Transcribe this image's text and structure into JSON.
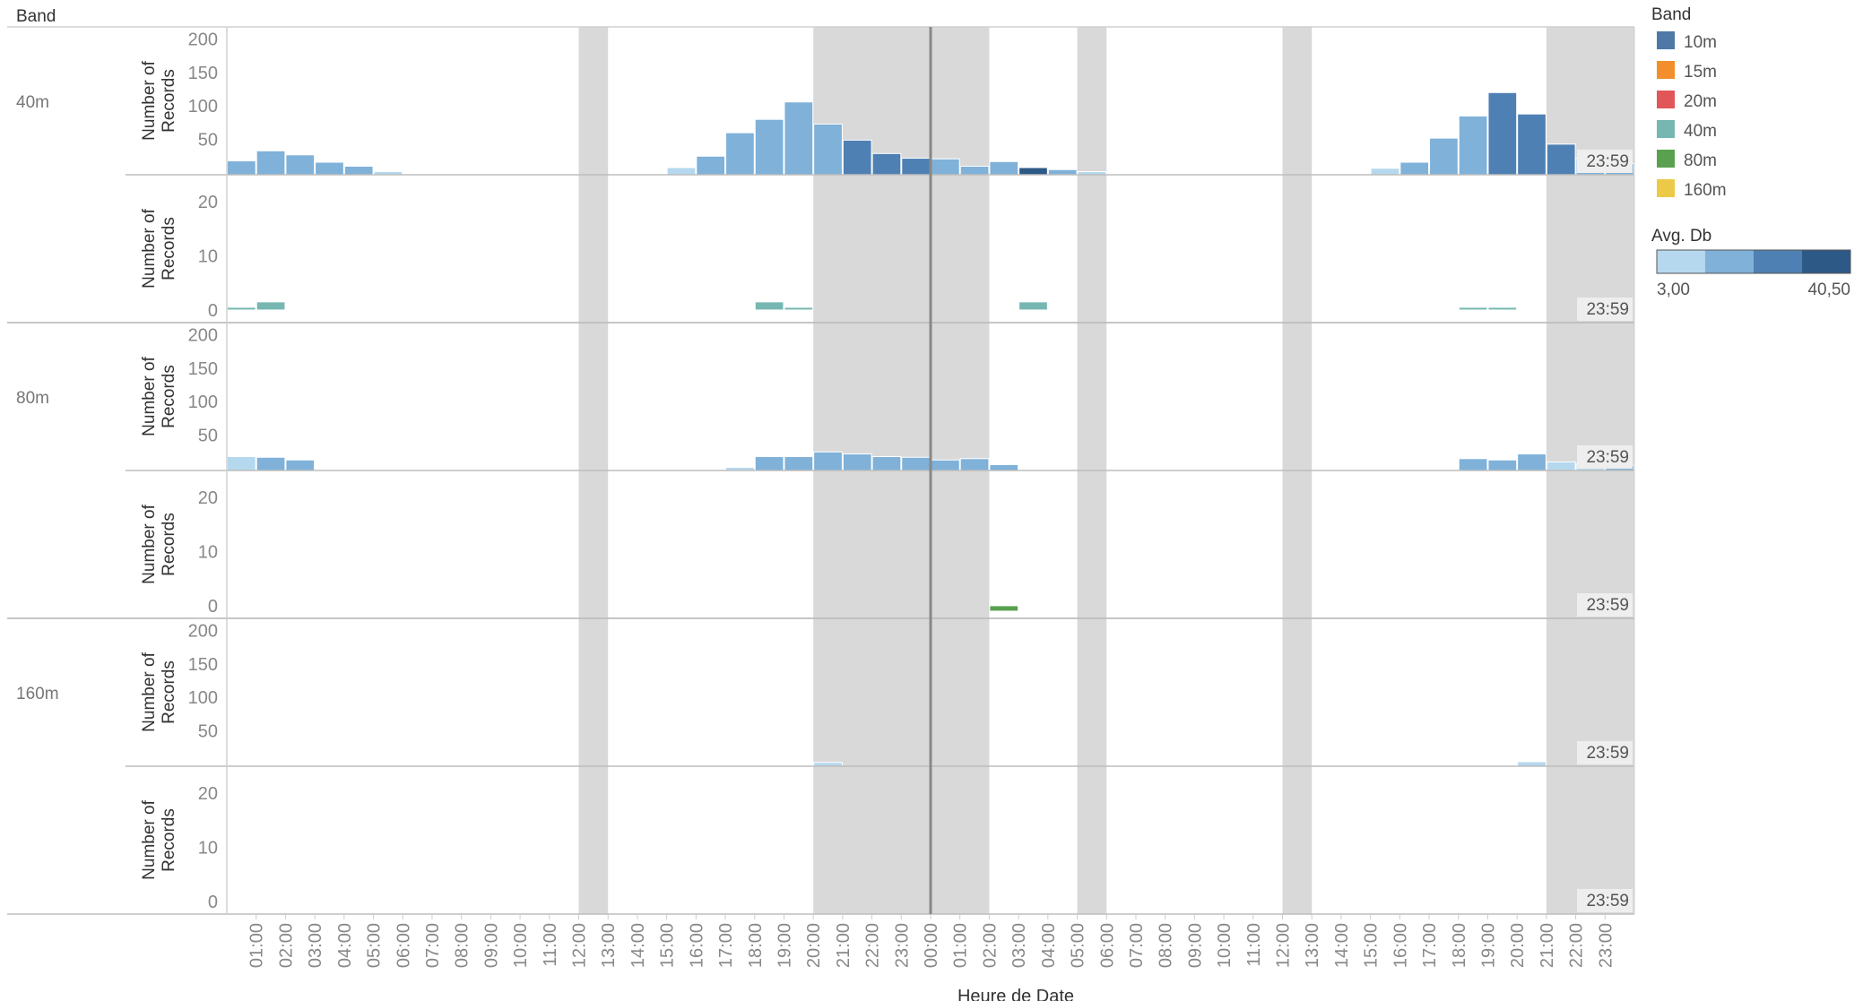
{
  "header": {
    "band_title": "Band"
  },
  "legend": {
    "band_title": "Band",
    "bands": [
      {
        "label": "10m",
        "color": "#4e79a7"
      },
      {
        "label": "15m",
        "color": "#f28e2b"
      },
      {
        "label": "20m",
        "color": "#e15759"
      },
      {
        "label": "40m",
        "color": "#76b7b2"
      },
      {
        "label": "80m",
        "color": "#59a14f"
      },
      {
        "label": "160m",
        "color": "#edc948"
      }
    ],
    "db_title": "Avg. Db",
    "db_min": "3,00",
    "db_max": "40,50",
    "db_colors": [
      "#b5d8ee",
      "#7fb1d9",
      "#4f80b3",
      "#2d5987"
    ]
  },
  "chart_data": {
    "type": "bar",
    "x_label": "Heure de Date",
    "y_label": "Number of Records",
    "x_ticks": [
      "01:00",
      "02:00",
      "03:00",
      "04:00",
      "05:00",
      "06:00",
      "07:00",
      "08:00",
      "09:00",
      "10:00",
      "11:00",
      "12:00",
      "13:00",
      "14:00",
      "15:00",
      "16:00",
      "17:00",
      "18:00",
      "19:00",
      "20:00",
      "21:00",
      "22:00",
      "23:00",
      "00:00",
      "01:00",
      "02:00",
      "03:00",
      "04:00",
      "05:00",
      "06:00",
      "07:00",
      "08:00",
      "09:00",
      "10:00",
      "11:00",
      "12:00",
      "13:00",
      "14:00",
      "15:00",
      "16:00",
      "17:00",
      "18:00",
      "19:00",
      "20:00",
      "21:00",
      "22:00",
      "23:00"
    ],
    "shaded_ranges": [
      [
        12,
        13
      ],
      [
        20,
        24
      ],
      [
        24,
        26
      ],
      [
        29,
        30
      ],
      [
        36,
        37
      ],
      [
        45,
        48
      ]
    ],
    "reference_line_at": 24,
    "end_label": "23:59",
    "rows": [
      {
        "band": "40m",
        "upper": {
          "yticks": [
            50,
            100,
            150,
            200
          ],
          "ymax": 210,
          "bars": [
            {
              "x": 0,
              "value": 18,
              "db": 2
            },
            {
              "x": 1,
              "value": 33,
              "db": 2
            },
            {
              "x": 2,
              "value": 27,
              "db": 2
            },
            {
              "x": 3,
              "value": 16,
              "db": 2
            },
            {
              "x": 4,
              "value": 10,
              "db": 2
            },
            {
              "x": 5,
              "value": 2,
              "db": 1
            },
            {
              "x": 15,
              "value": 8,
              "db": 1
            },
            {
              "x": 16,
              "value": 25,
              "db": 2
            },
            {
              "x": 17,
              "value": 60,
              "db": 2
            },
            {
              "x": 18,
              "value": 80,
              "db": 2
            },
            {
              "x": 19,
              "value": 106,
              "db": 2
            },
            {
              "x": 20,
              "value": 73,
              "db": 2
            },
            {
              "x": 21,
              "value": 49,
              "db": 3
            },
            {
              "x": 22,
              "value": 29,
              "db": 3
            },
            {
              "x": 23,
              "value": 22,
              "db": 3
            },
            {
              "x": 24,
              "value": 21,
              "db": 2
            },
            {
              "x": 25,
              "value": 10,
              "db": 2
            },
            {
              "x": 26,
              "value": 17,
              "db": 2
            },
            {
              "x": 27,
              "value": 8,
              "db": 4
            },
            {
              "x": 28,
              "value": 5,
              "db": 2
            },
            {
              "x": 29,
              "value": 2,
              "db": 1
            },
            {
              "x": 39,
              "value": 7,
              "db": 1
            },
            {
              "x": 40,
              "value": 16,
              "db": 2
            },
            {
              "x": 41,
              "value": 52,
              "db": 2
            },
            {
              "x": 42,
              "value": 85,
              "db": 2
            },
            {
              "x": 43,
              "value": 120,
              "db": 3
            },
            {
              "x": 44,
              "value": 88,
              "db": 3
            },
            {
              "x": 45,
              "value": 43,
              "db": 3
            },
            {
              "x": 46,
              "value": 22,
              "db": 2
            },
            {
              "x": 47,
              "value": 14,
              "db": 2
            }
          ]
        },
        "lower": {
          "yticks": [
            0,
            10,
            20
          ],
          "ymax": 24,
          "ymin": -2,
          "bars": [
            {
              "x": 0,
              "value": 0.5,
              "band": "40m"
            },
            {
              "x": 1,
              "value": 1.5,
              "band": "40m"
            },
            {
              "x": 18,
              "value": 1.5,
              "band": "40m"
            },
            {
              "x": 19,
              "value": 0.5,
              "band": "40m"
            },
            {
              "x": 27,
              "value": 1.5,
              "band": "40m"
            },
            {
              "x": 42,
              "value": 0.5,
              "band": "40m"
            },
            {
              "x": 43,
              "value": 0.5,
              "band": "40m"
            }
          ]
        }
      },
      {
        "band": "80m",
        "upper": {
          "yticks": [
            50,
            100,
            150,
            200
          ],
          "ymax": 210,
          "bars": [
            {
              "x": 0,
              "value": 18,
              "db": 1
            },
            {
              "x": 1,
              "value": 17,
              "db": 2
            },
            {
              "x": 2,
              "value": 13,
              "db": 2
            },
            {
              "x": 17,
              "value": 2,
              "db": 1
            },
            {
              "x": 18,
              "value": 18,
              "db": 2
            },
            {
              "x": 19,
              "value": 18,
              "db": 2
            },
            {
              "x": 20,
              "value": 25,
              "db": 2
            },
            {
              "x": 21,
              "value": 22,
              "db": 2
            },
            {
              "x": 22,
              "value": 18,
              "db": 2
            },
            {
              "x": 23,
              "value": 17,
              "db": 2
            },
            {
              "x": 24,
              "value": 13,
              "db": 2
            },
            {
              "x": 25,
              "value": 15,
              "db": 2
            },
            {
              "x": 26,
              "value": 6,
              "db": 2
            },
            {
              "x": 42,
              "value": 15,
              "db": 2
            },
            {
              "x": 43,
              "value": 13,
              "db": 2
            },
            {
              "x": 44,
              "value": 22,
              "db": 2
            },
            {
              "x": 45,
              "value": 10,
              "db": 1
            },
            {
              "x": 46,
              "value": 7,
              "db": 1
            },
            {
              "x": 47,
              "value": 5,
              "db": 2
            }
          ]
        },
        "lower": {
          "yticks": [
            0,
            10,
            20
          ],
          "ymax": 24,
          "ymin": -2,
          "bars": [
            {
              "x": 26,
              "value": -1,
              "band": "80m"
            }
          ]
        }
      },
      {
        "band": "160m",
        "upper": {
          "yticks": [
            50,
            100,
            150,
            200
          ],
          "ymax": 210,
          "bars": [
            {
              "x": 20,
              "value": 3,
              "db": 1
            },
            {
              "x": 44,
              "value": 4,
              "db": 1
            }
          ]
        },
        "lower": {
          "yticks": [
            0,
            10,
            20
          ],
          "ymax": 24,
          "ymin": -2,
          "bars": []
        }
      }
    ]
  }
}
